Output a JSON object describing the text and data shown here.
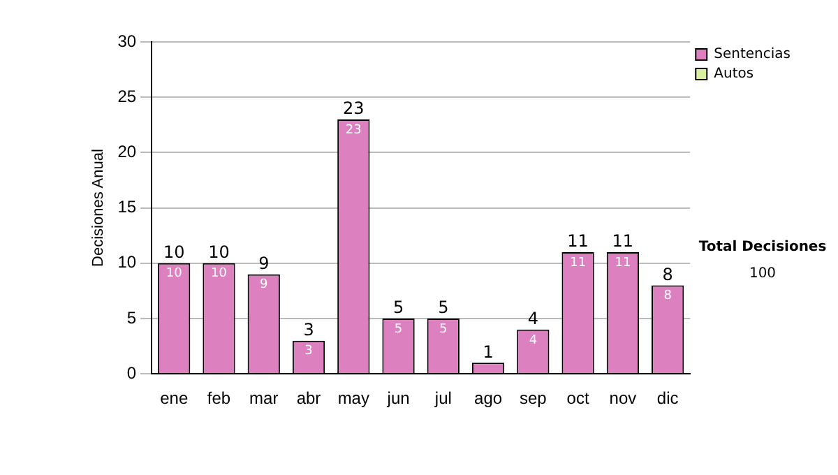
{
  "chart_data": {
    "type": "bar",
    "ylabel": "Decisiones Anual",
    "categories": [
      "ene",
      "feb",
      "mar",
      "abr",
      "may",
      "jun",
      "jul",
      "ago",
      "sep",
      "oct",
      "nov",
      "dic"
    ],
    "stacked": true,
    "series": [
      {
        "name": "Sentencias",
        "color": "#dd80c0",
        "values": [
          10,
          10,
          9,
          3,
          23,
          5,
          5,
          1,
          4,
          11,
          11,
          8
        ],
        "value_labels": [
          "10",
          "10",
          "9",
          "3",
          "23",
          "5",
          "5",
          null,
          "4",
          "11",
          "11",
          "8"
        ]
      },
      {
        "name": "Autos",
        "color": "#d8f0a0",
        "values": [
          0,
          0,
          0,
          0,
          0,
          0,
          0,
          0,
          0,
          0,
          0,
          0
        ]
      }
    ],
    "totals": [
      "10",
      "10",
      "9",
      "3",
      "23",
      "5",
      "5",
      "1",
      "4",
      "11",
      "11",
      "8"
    ],
    "ylim": [
      0,
      30
    ],
    "yticks": [
      0,
      5,
      10,
      15,
      20,
      25,
      30
    ],
    "grid": "y",
    "legend": "right",
    "annotations": [
      "Total Decisiones",
      "100"
    ]
  }
}
